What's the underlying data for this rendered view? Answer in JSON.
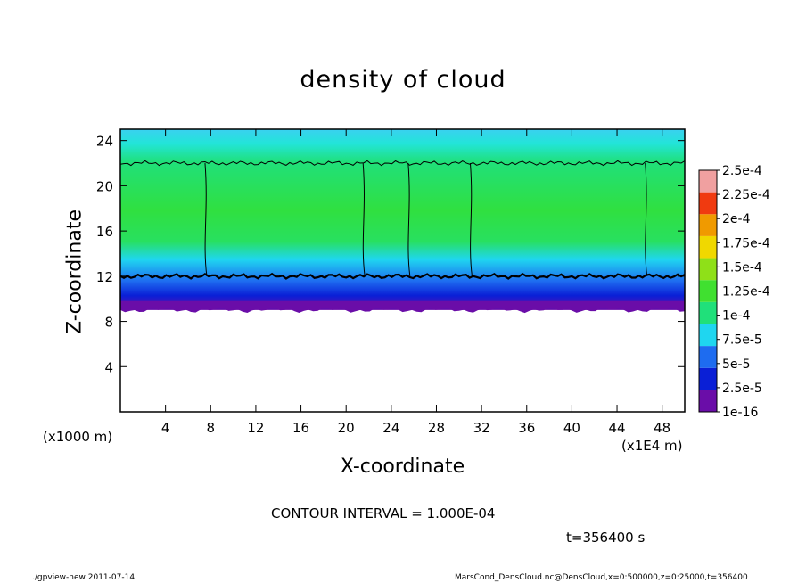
{
  "chart_data": {
    "type": "heatmap",
    "title": "density of cloud",
    "xlabel": "X-coordinate",
    "ylabel": "Z-coordinate",
    "x_unit_label": "(x1E4 m)",
    "y_unit_label": "(x1000 m)",
    "xlim": [
      0,
      50
    ],
    "ylim": [
      0,
      25
    ],
    "x_ticks": [
      "4",
      "8",
      "12",
      "16",
      "20",
      "24",
      "28",
      "32",
      "36",
      "40",
      "44",
      "48"
    ],
    "y_ticks": [
      "4",
      "8",
      "12",
      "16",
      "20",
      "24"
    ],
    "colorbar_levels": [
      "1e-16",
      "2.5e-5",
      "5e-5",
      "7.5e-5",
      "1e-4",
      "1.25e-4",
      "1.5e-4",
      "1.75e-4",
      "2e-4",
      "2.25e-4",
      "2.5e-4"
    ],
    "colorbar_colors": [
      "#6a0da8",
      "#0a1fd6",
      "#1e6cf0",
      "#1fd6f0",
      "#20e07a",
      "#40e030",
      "#8fe018",
      "#f0d800",
      "#f09a00",
      "#f03a10",
      "#f0a0a0"
    ],
    "cloud_layer_z": [
      9,
      24
    ],
    "contour_level_z": [
      12,
      22
    ],
    "contour_interval": "CONTOUR INTERVAL = 1.000E-04",
    "time_label": "t=356400 s",
    "grid": false
  },
  "footer": {
    "left": "./gpview-new   2011-07-14",
    "right": "MarsCond_DensCloud.nc@DensCloud,x=0:500000,z=0:25000,t=356400"
  }
}
